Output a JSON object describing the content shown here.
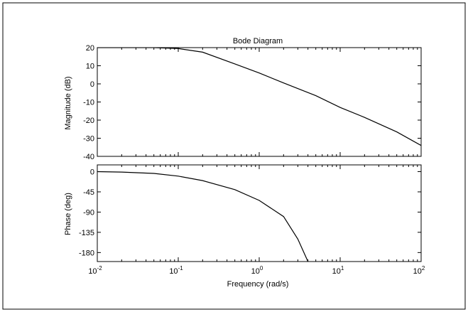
{
  "colors": {
    "background": "#ffffff",
    "axes": "#000000",
    "line": "#000000"
  },
  "chart_data": [
    {
      "type": "line",
      "title": "Bode Diagram",
      "xlabel": "",
      "ylabel": "Magnitude (dB)",
      "xscale": "log",
      "xlim": [
        0.01,
        100
      ],
      "ylim": [
        -40,
        20
      ],
      "yticks": [
        20,
        10,
        0,
        -10,
        -20,
        -30,
        -40
      ],
      "grid": false,
      "series": [
        {
          "x": [
            0.01,
            0.02,
            0.05,
            0.1,
            0.2,
            0.5,
            1,
            2,
            5,
            10,
            20,
            50,
            100
          ],
          "values": [
            20,
            20,
            20,
            19.5,
            17.5,
            11,
            6,
            0.5,
            -6.5,
            -13,
            -18.5,
            -26.5,
            -34
          ]
        }
      ]
    },
    {
      "type": "line",
      "title": "",
      "xlabel": "Frequency  (rad/s)",
      "ylabel": "Phase (deg)",
      "xscale": "log",
      "xlim": [
        0.01,
        100
      ],
      "ylim": [
        -200,
        15
      ],
      "yticks": [
        0,
        -45,
        -90,
        -135,
        -180
      ],
      "xticks": [
        {
          "base": "10",
          "exp": "-2"
        },
        {
          "base": "10",
          "exp": "-1"
        },
        {
          "base": "10",
          "exp": "0"
        },
        {
          "base": "10",
          "exp": "1"
        },
        {
          "base": "10",
          "exp": "2"
        }
      ],
      "grid": false,
      "series": [
        {
          "x": [
            0.01,
            0.02,
            0.05,
            0.1,
            0.2,
            0.5,
            1,
            2,
            3,
            4
          ],
          "values": [
            0,
            -1,
            -4,
            -10,
            -20,
            -40,
            -64,
            -100,
            -150,
            -200
          ]
        }
      ]
    }
  ]
}
